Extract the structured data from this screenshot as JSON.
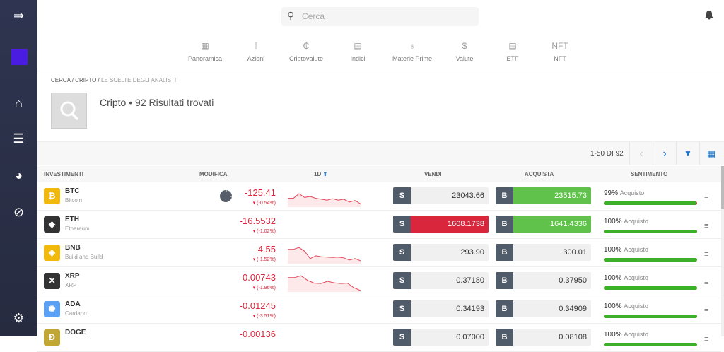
{
  "sidebar": {
    "items": [
      {
        "icon": "collapse-arrow-icon"
      },
      {
        "icon": "logo"
      },
      {
        "icon": "home-icon"
      },
      {
        "icon": "watchlist-icon"
      },
      {
        "icon": "portfolio-pie-icon"
      },
      {
        "icon": "discover-icon"
      },
      {
        "icon": "settings-icon"
      }
    ]
  },
  "search": {
    "placeholder": "Cerca"
  },
  "nav": [
    {
      "label": "Panoramica",
      "icon": "grid-icon"
    },
    {
      "label": "Azioni",
      "icon": "candles-icon"
    },
    {
      "label": "Criptovalute",
      "icon": "crypto-icon"
    },
    {
      "label": "Indici",
      "icon": "index-icon"
    },
    {
      "label": "Materie Prime",
      "icon": "drop-icon"
    },
    {
      "label": "Valute",
      "icon": "dollar-icon"
    },
    {
      "label": "ETF",
      "icon": "etf-icon"
    },
    {
      "label": "NFT",
      "icon": "nft-icon"
    }
  ],
  "breadcrumb": [
    "CERCA",
    "CRIPTO",
    "LE SCELTE DEGLI ANALISTI"
  ],
  "header": {
    "title": "Cripto",
    "results": "• 92 Risultati trovati"
  },
  "pagination": {
    "info": "1-50 DI 92"
  },
  "columns": [
    "INVESTIMENTI",
    "MODIFICA",
    "1D",
    "VENDI",
    "ACQUISTA",
    "SENTIMENTO"
  ],
  "colors": {
    "accent": "#1a73c8",
    "down": "#d9263c",
    "buy": "#60c24b",
    "sidebar": "#2b3147"
  },
  "rows": [
    {
      "symbol": "BTC",
      "name": "Bitcoin",
      "change": "-125.41",
      "pct": "(-0.54%)",
      "sell": "23043.66",
      "buy": "23515.73",
      "sent_pct": "99%",
      "sent_label": "Acquisto",
      "sentiment": 99,
      "sell_state": "neutral",
      "buy_state": "up",
      "color": "#f0b90b",
      "glyph": "₿",
      "pie": true,
      "spark": [
        60,
        60,
        35,
        55,
        50,
        60,
        65,
        70,
        62,
        70,
        65,
        80,
        72,
        90
      ]
    },
    {
      "symbol": "ETH",
      "name": "Ethereum",
      "change": "-16.5532",
      "pct": "(-1.02%)",
      "sell": "1608.1738",
      "buy": "1641.4336",
      "sent_pct": "100%",
      "sent_label": "Acquisto",
      "sentiment": 100,
      "sell_state": "down",
      "buy_state": "up",
      "color": "#333",
      "glyph": "◆",
      "pie": false,
      "spark": null
    },
    {
      "symbol": "BNB",
      "name": "Build and Build",
      "change": "-4.55",
      "pct": "(-1.52%)",
      "sell": "293.90",
      "buy": "300.01",
      "sent_pct": "100%",
      "sent_label": "Acquisto",
      "sentiment": 100,
      "sell_state": "neutral",
      "buy_state": "neutral",
      "color": "#f0b90b",
      "glyph": "◈",
      "pie": false,
      "spark": [
        30,
        30,
        20,
        40,
        80,
        65,
        70,
        72,
        74,
        72,
        76,
        88,
        80,
        92
      ]
    },
    {
      "symbol": "XRP",
      "name": "XRP",
      "change": "-0.00743",
      "pct": "(-1.96%)",
      "sell": "0.37180",
      "buy": "0.37950",
      "sent_pct": "100%",
      "sent_label": "Acquisto",
      "sentiment": 100,
      "sell_state": "neutral",
      "buy_state": "neutral",
      "color": "#333",
      "glyph": "✕",
      "pie": false,
      "spark": [
        30,
        30,
        20,
        45,
        60,
        62,
        50,
        58,
        62,
        60,
        85,
        100
      ]
    },
    {
      "symbol": "ADA",
      "name": "Cardano",
      "change": "-0.01245",
      "pct": "(-3.51%)",
      "sell": "0.34193",
      "buy": "0.34909",
      "sent_pct": "100%",
      "sent_label": "Acquisto",
      "sentiment": 100,
      "sell_state": "neutral",
      "buy_state": "neutral",
      "color": "#5aa0f5",
      "glyph": "✺",
      "pie": false,
      "spark": null
    },
    {
      "symbol": "DOGE",
      "name": "",
      "change": "-0.00136",
      "pct": "",
      "sell": "0.07000",
      "buy": "0.08108",
      "sent_pct": "100%",
      "sent_label": "Acquisto",
      "sentiment": 100,
      "sell_state": "neutral",
      "buy_state": "neutral",
      "color": "#c2a633",
      "glyph": "Ð",
      "pie": false,
      "spark": null
    }
  ]
}
